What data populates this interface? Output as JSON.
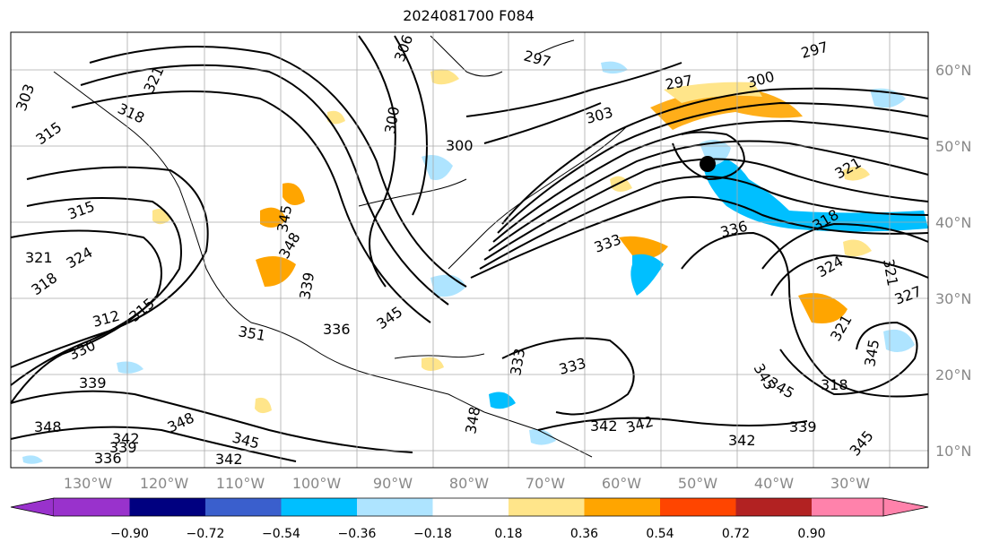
{
  "title": "2024081700 F084",
  "map": {
    "lon_labels": [
      "130°W",
      "120°W",
      "110°W",
      "100°W",
      "90°W",
      "80°W",
      "70°W",
      "60°W",
      "50°W",
      "40°W",
      "30°W"
    ],
    "lat_labels": [
      "60°N",
      "50°N",
      "40°N",
      "30°N",
      "20°N",
      "10°N"
    ],
    "contour_labels": [
      "303",
      "321",
      "318",
      "315",
      "315",
      "321",
      "324",
      "318",
      "312",
      "315",
      "330",
      "339",
      "348",
      "342",
      "339",
      "336",
      "345",
      "342",
      "348",
      "351",
      "345",
      "339",
      "336",
      "345",
      "348",
      "306",
      "300",
      "300",
      "297",
      "297",
      "303",
      "300",
      "297",
      "333",
      "336",
      "318",
      "321",
      "324",
      "321",
      "327",
      "333",
      "342",
      "342",
      "342",
      "339",
      "345",
      "348",
      "345",
      "333",
      "345",
      "318",
      "345",
      "321"
    ],
    "marker": "black-dot"
  },
  "colorbar": {
    "tick_labels": [
      "−0.90",
      "−0.72",
      "−0.54",
      "−0.36",
      "−0.18",
      "0.18",
      "0.36",
      "0.54",
      "0.72",
      "0.90"
    ],
    "colors": [
      "#9932cc",
      "#000080",
      "#3a5fcd",
      "#00bfff",
      "#aee4ff",
      "#ffffff",
      "#ffe58a",
      "#ffa500",
      "#ff4500",
      "#b22222",
      "#ff82ab"
    ]
  }
}
